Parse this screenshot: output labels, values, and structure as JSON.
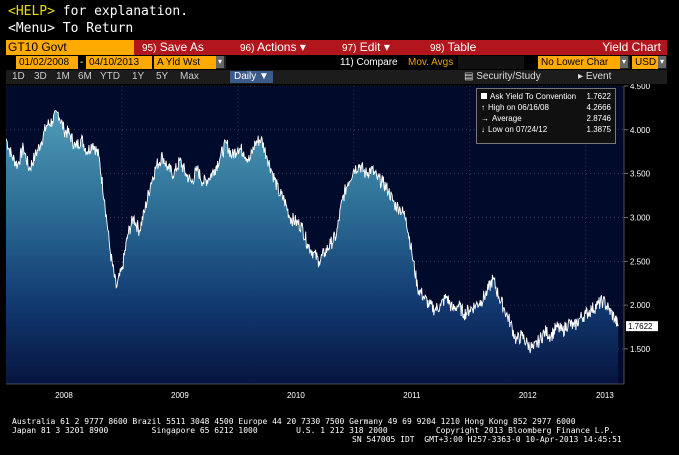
{
  "header": {
    "help_key": "<HELP>",
    "help_rest": " for explanation.",
    "menu_line": "<Menu> To Return"
  },
  "command_bar": {
    "ticker": "GT10 Govt",
    "save_num": "95)",
    "save_label": "Save As",
    "actions_num": "96)",
    "actions_label": "Actions",
    "edit_num": "97)",
    "edit_label": "Edit",
    "table_num": "98)",
    "table_label": "Table",
    "title": "Yield Chart",
    "dropdown_glyph": "▾"
  },
  "settings_row": {
    "start_date": "01/02/2008",
    "separator": "-",
    "end_date": "04/10/2013",
    "field": "A Yld Wst",
    "compare": "11) Compare",
    "mov_avgs": "Mov. Avgs",
    "lower_chart": "No Lower Char",
    "currency": "USD"
  },
  "timeframe_row": {
    "tabs": [
      "1D",
      "3D",
      "1M",
      "6M",
      "YTD",
      "1Y",
      "5Y",
      "Max"
    ],
    "period": "Daily",
    "period_arrow": "▼",
    "security_label": "Security/Study",
    "event_label": "Event"
  },
  "legend": {
    "series": "Ask Yield To Convention",
    "series_value": "1.7622",
    "high_label": "High on 06/16/08",
    "high_value": "4.2666",
    "avg_label": "Average",
    "avg_value": "2.8746",
    "low_label": "Low on 07/24/12",
    "low_value": "1.3875"
  },
  "chart_data": {
    "type": "area",
    "title": "",
    "ylim": [
      1.1,
      4.5
    ],
    "y_ticks": [
      "4.500",
      "4.000",
      "3.500",
      "3.000",
      "2.500",
      "2.000",
      "1.500"
    ],
    "x_ticks": [
      "2008",
      "2009",
      "2010",
      "2011",
      "2012",
      "2013"
    ],
    "last_value_label": "1.7622",
    "series": [
      {
        "name": "Ask Yield To Convention",
        "x": [
          2008.0,
          2008.05,
          2008.1,
          2008.15,
          2008.2,
          2008.25,
          2008.3,
          2008.35,
          2008.4,
          2008.45,
          2008.5,
          2008.55,
          2008.6,
          2008.65,
          2008.7,
          2008.75,
          2008.8,
          2008.85,
          2008.9,
          2008.95,
          2009.0,
          2009.05,
          2009.1,
          2009.15,
          2009.2,
          2009.25,
          2009.3,
          2009.35,
          2009.4,
          2009.45,
          2009.5,
          2009.55,
          2009.6,
          2009.65,
          2009.7,
          2009.75,
          2009.8,
          2009.85,
          2009.9,
          2009.95,
          2010.0,
          2010.05,
          2010.1,
          2010.15,
          2010.2,
          2010.25,
          2010.3,
          2010.35,
          2010.4,
          2010.45,
          2010.5,
          2010.55,
          2010.6,
          2010.65,
          2010.7,
          2010.75,
          2010.8,
          2010.85,
          2010.9,
          2010.95,
          2011.0,
          2011.05,
          2011.1,
          2011.15,
          2011.2,
          2011.25,
          2011.3,
          2011.35,
          2011.4,
          2011.45,
          2011.5,
          2011.55,
          2011.6,
          2011.65,
          2011.7,
          2011.75,
          2011.8,
          2011.85,
          2011.9,
          2011.95,
          2012.0,
          2012.05,
          2012.1,
          2012.15,
          2012.2,
          2012.25,
          2012.3,
          2012.35,
          2012.4,
          2012.45,
          2012.5,
          2012.55,
          2012.6,
          2012.65,
          2012.7,
          2012.75,
          2012.8,
          2012.85,
          2012.9,
          2012.95,
          2013.0,
          2013.05,
          2013.1,
          2013.15,
          2013.2,
          2013.25,
          2013.28
        ],
        "values": [
          3.9,
          3.7,
          3.6,
          3.8,
          3.55,
          3.7,
          3.85,
          4.05,
          4.1,
          4.2,
          4.0,
          3.95,
          3.8,
          3.9,
          3.75,
          3.85,
          3.7,
          3.2,
          2.6,
          2.2,
          2.4,
          2.8,
          3.0,
          2.85,
          3.1,
          3.4,
          3.6,
          3.7,
          3.55,
          3.5,
          3.65,
          3.5,
          3.4,
          3.55,
          3.4,
          3.45,
          3.55,
          3.7,
          3.85,
          3.7,
          3.8,
          3.75,
          3.65,
          3.85,
          3.9,
          3.7,
          3.5,
          3.3,
          3.2,
          3.0,
          2.95,
          2.9,
          2.7,
          2.6,
          2.5,
          2.6,
          2.7,
          2.8,
          3.2,
          3.4,
          3.55,
          3.6,
          3.5,
          3.55,
          3.45,
          3.4,
          3.3,
          3.15,
          3.1,
          3.0,
          2.6,
          2.2,
          2.1,
          2.0,
          1.95,
          2.0,
          2.1,
          1.95,
          2.0,
          1.9,
          1.95,
          2.0,
          2.05,
          2.15,
          2.3,
          2.1,
          1.95,
          1.8,
          1.6,
          1.65,
          1.55,
          1.5,
          1.6,
          1.7,
          1.65,
          1.75,
          1.7,
          1.8,
          1.75,
          1.85,
          1.9,
          1.95,
          2.0,
          2.05,
          1.95,
          1.85,
          1.76
        ]
      }
    ]
  },
  "footer": {
    "line1": "Australia 61 2 9777 8600 Brazil 5511 3048 4500 Europe 44 20 7330 7500 Germany 49 69 9204 1210 Hong Kong 852 2977 6000",
    "line2": "Japan 81 3 3201 8900         Singapore 65 6212 1000        U.S. 1 212 318 2000          Copyright 2013 Bloomberg Finance L.P.",
    "line3": "SN 547005 IDT  GMT+3:00 H257-3363-0 10-Apr-2013 14:45:51"
  },
  "colors": {
    "amber": "#f0a400",
    "command_bar": "#b2161d",
    "plot_bg": "#000f3a",
    "area_top": "#4f9bb8",
    "area_bottom": "#07153f",
    "line": "#ffffff"
  }
}
